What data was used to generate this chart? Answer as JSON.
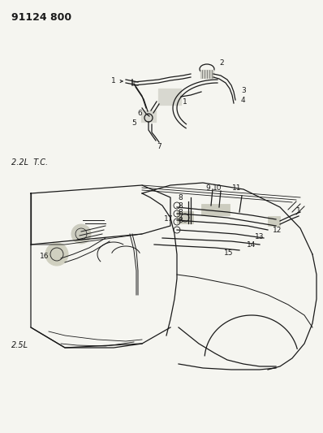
{
  "title": "91124 800",
  "label_22L": "2.2L  T.C.",
  "label_25L": "2.5L",
  "bg_color": "#f5f5f0",
  "line_color": "#1a1a1a",
  "title_fontsize": 9,
  "label_fontsize": 7,
  "number_fontsize": 6.5
}
